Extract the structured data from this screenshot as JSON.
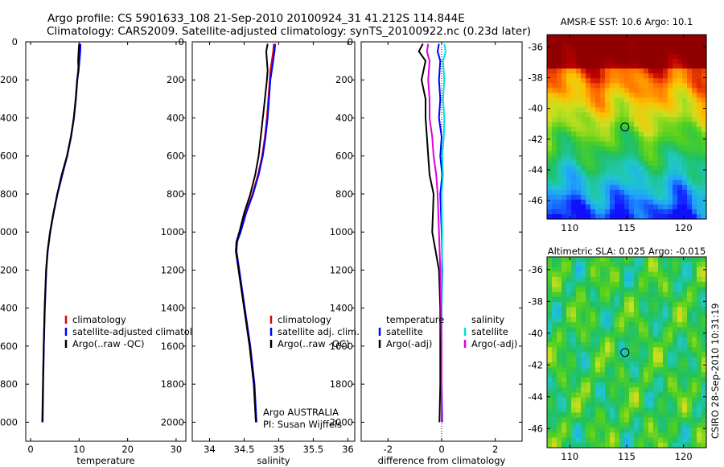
{
  "header": {
    "line1": "Argo profile: CS 5901633_108 21-Sep-2010 20100924_31 41.212S 114.844E",
    "line2": "Climatology: CARS2009. Satellite-adjusted climatology: synTS_20100922.nc (0.23d later)"
  },
  "credits": {
    "argo": "Argo AUSTRALIA",
    "pi": "PI: Susan Wijffels",
    "csiro": "CSIRO 28-Sep-2010 10:31:19"
  },
  "colors": {
    "climatology": "#e00000",
    "satellite": "#0000ff",
    "argo": "#000000",
    "satellite_salinity": "#00e0e0",
    "argo_salinity": "#e000e0"
  },
  "chart_data": [
    {
      "type": "line",
      "id": "temperature",
      "title": "",
      "xlabel": "temperature",
      "ylabel": "",
      "xlim": [
        -1,
        32
      ],
      "ylim": [
        2100,
        0
      ],
      "xticks": [
        0,
        10,
        20,
        30
      ],
      "yticks": [
        0,
        200,
        400,
        600,
        800,
        1000,
        1200,
        1400,
        1600,
        1800,
        2000
      ],
      "legend": {
        "placement": "lower-right",
        "entries": [
          "climatology",
          "satellite-adjusted climatology",
          "Argo(..raw -QC)"
        ]
      },
      "series": [
        {
          "name": "climatology",
          "color": "#e00000",
          "x": [
            10.1,
            10.05,
            9.95,
            9.8,
            9.6,
            9.3,
            8.9,
            8.3,
            7.5,
            6.5,
            5.5,
            4.7,
            4.0,
            3.5,
            3.2,
            2.9,
            2.7,
            2.55,
            2.45
          ],
          "y": [
            10,
            50,
            100,
            150,
            200,
            300,
            400,
            500,
            600,
            700,
            800,
            900,
            1000,
            1100,
            1200,
            1400,
            1600,
            1800,
            2000
          ]
        },
        {
          "name": "satellite-adjusted climatology",
          "color": "#0000ff",
          "x": [
            10.3,
            10.25,
            10.1,
            9.9,
            9.65,
            9.35,
            8.95,
            8.35,
            7.55,
            6.55,
            5.55,
            4.75,
            4.05,
            3.55,
            3.25,
            2.95,
            2.75,
            2.6,
            2.5
          ],
          "y": [
            10,
            50,
            100,
            150,
            200,
            300,
            400,
            500,
            600,
            700,
            800,
            900,
            1000,
            1100,
            1200,
            1400,
            1600,
            1800,
            2000
          ]
        },
        {
          "name": "Argo(..raw -QC)",
          "color": "#000000",
          "x": [
            10.0,
            9.9,
            9.8,
            9.9,
            9.6,
            9.3,
            8.9,
            8.3,
            7.5,
            6.4,
            5.5,
            4.7,
            4.0,
            3.5,
            3.2,
            2.9,
            2.7,
            2.55,
            2.4
          ],
          "y": [
            10,
            50,
            100,
            150,
            200,
            300,
            400,
            500,
            600,
            700,
            800,
            900,
            1000,
            1100,
            1200,
            1400,
            1600,
            1800,
            2000
          ]
        }
      ]
    },
    {
      "type": "line",
      "id": "salinity",
      "title": "",
      "xlabel": "salinity",
      "ylabel": "",
      "xlim": [
        33.75,
        36.1
      ],
      "ylim": [
        2100,
        0
      ],
      "xticks": [
        34,
        34.5,
        35,
        35.5,
        36
      ],
      "yticks": [
        0,
        200,
        400,
        600,
        800,
        1000,
        1200,
        1400,
        1600,
        1800,
        2000
      ],
      "legend": {
        "placement": "lower-right",
        "entries": [
          "climatology",
          "satellite adj. clim.",
          "Argo(..raw -QC)"
        ]
      },
      "series": [
        {
          "name": "climatology",
          "color": "#e00000",
          "x": [
            34.93,
            34.92,
            34.9,
            34.88,
            34.87,
            34.85,
            34.83,
            34.8,
            34.76,
            34.7,
            34.62,
            34.52,
            34.44,
            34.39,
            34.38,
            34.42,
            34.5,
            34.58,
            34.64,
            34.67
          ],
          "y": [
            10,
            50,
            100,
            150,
            200,
            300,
            400,
            500,
            600,
            700,
            800,
            900,
            1000,
            1050,
            1100,
            1200,
            1400,
            1600,
            1800,
            2000
          ]
        },
        {
          "name": "satellite adj. clim.",
          "color": "#0000ff",
          "x": [
            34.95,
            34.94,
            34.92,
            34.9,
            34.88,
            34.86,
            34.84,
            34.81,
            34.77,
            34.71,
            34.63,
            34.53,
            34.45,
            34.4,
            34.39,
            34.43,
            34.51,
            34.59,
            34.65,
            34.68
          ],
          "y": [
            10,
            50,
            100,
            150,
            200,
            300,
            400,
            500,
            600,
            700,
            800,
            900,
            1000,
            1050,
            1100,
            1200,
            1400,
            1600,
            1800,
            2000
          ]
        },
        {
          "name": "Argo(..raw -QC)",
          "color": "#000000",
          "x": [
            34.84,
            34.82,
            34.83,
            34.84,
            34.83,
            34.8,
            34.77,
            34.74,
            34.71,
            34.66,
            34.59,
            34.5,
            34.43,
            34.39,
            34.38,
            34.42,
            34.5,
            34.58,
            34.64,
            34.67
          ],
          "y": [
            10,
            50,
            100,
            150,
            200,
            300,
            400,
            500,
            600,
            700,
            800,
            900,
            1000,
            1050,
            1100,
            1200,
            1400,
            1600,
            1800,
            2000
          ]
        }
      ]
    },
    {
      "type": "line",
      "id": "difference",
      "title": "",
      "xlabel": "difference from climatology",
      "ylabel": "",
      "xlim": [
        -3,
        3
      ],
      "ylim": [
        2100,
        0
      ],
      "xticks": [
        -2,
        0,
        2
      ],
      "yticks": [
        0,
        200,
        400,
        600,
        800,
        1000,
        1200,
        1400,
        1600,
        1800,
        2000
      ],
      "legend": {
        "placement": "lower-right",
        "groups": [
          {
            "heading": "temperature",
            "entries": [
              "satellite",
              "Argo(-adj)"
            ]
          },
          {
            "heading": "salinity",
            "entries": [
              "satellite",
              "Argo(-adj)"
            ]
          }
        ]
      },
      "series": [
        {
          "name": "satellite",
          "group": "temperature",
          "color": "#0000ff",
          "x": [
            -0.1,
            -0.15,
            -0.05,
            -0.1,
            -0.05,
            -0.1,
            0.0,
            -0.05,
            0.02,
            -0.05,
            0.0,
            0.02,
            0.0,
            0.0,
            0.0,
            0.02
          ],
          "y": [
            10,
            50,
            100,
            200,
            300,
            400,
            500,
            600,
            700,
            800,
            1000,
            1200,
            1400,
            1600,
            1800,
            2000
          ]
        },
        {
          "name": "Argo(-adj)",
          "group": "temperature",
          "color": "#000000",
          "x": [
            -0.7,
            -0.85,
            -0.6,
            -0.75,
            -0.6,
            -0.6,
            -0.55,
            -0.5,
            -0.45,
            -0.3,
            -0.35,
            -0.1,
            -0.05,
            -0.05,
            -0.05,
            -0.08
          ],
          "y": [
            10,
            50,
            100,
            200,
            300,
            400,
            500,
            600,
            700,
            800,
            1000,
            1200,
            1400,
            1600,
            1800,
            2000
          ]
        },
        {
          "name": "satellite",
          "group": "salinity",
          "color": "#00e0e0",
          "x": [
            0.1,
            0.15,
            0.05,
            0.1,
            0.05,
            0.1,
            0.08,
            0.02,
            0.05,
            0.0,
            0.02,
            0.0,
            0.0,
            0.0,
            0.0
          ],
          "y": [
            10,
            50,
            100,
            200,
            300,
            400,
            500,
            600,
            700,
            800,
            1000,
            1200,
            1400,
            1600,
            2000
          ]
        },
        {
          "name": "Argo(-adj)",
          "group": "salinity",
          "color": "#e000e0",
          "x": [
            -0.5,
            -0.55,
            -0.45,
            -0.5,
            -0.45,
            -0.45,
            -0.35,
            -0.3,
            -0.2,
            -0.15,
            -0.1,
            -0.05,
            -0.02,
            0.0,
            0.0
          ],
          "y": [
            10,
            50,
            100,
            200,
            300,
            400,
            500,
            600,
            700,
            800,
            1000,
            1200,
            1400,
            1600,
            2000
          ]
        }
      ]
    },
    {
      "type": "heatmap",
      "id": "sst_map",
      "title": "AMSR-E SST: 10.6  Argo: 10.1",
      "xlabel": "",
      "ylabel": "",
      "xlim": [
        108,
        122
      ],
      "ylim": [
        -47.2,
        -35.2
      ],
      "xticks": [
        110,
        115,
        120
      ],
      "yticks": [
        -36,
        -38,
        -40,
        -42,
        -44,
        -46
      ],
      "marker": {
        "lon": 114.844,
        "lat": -41.212
      },
      "colorscale": [
        "#1010ff",
        "#20a0ff",
        "#20c8c8",
        "#20c060",
        "#50d020",
        "#c8e020",
        "#ffc000",
        "#ff6000",
        "#c00000",
        "#900000"
      ]
    },
    {
      "type": "heatmap",
      "id": "sla_map",
      "title": "Altimetric SLA: 0.025  Argo: -0.015",
      "xlabel": "",
      "ylabel": "",
      "xlim": [
        108,
        122
      ],
      "ylim": [
        -47.2,
        -35.2
      ],
      "xticks": [
        110,
        115,
        120
      ],
      "yticks": [
        -36,
        -38,
        -40,
        -42,
        -44,
        -46
      ],
      "marker": {
        "lon": 114.844,
        "lat": -41.212
      },
      "colorscale": [
        "#1010ff",
        "#20a0ff",
        "#20c8c8",
        "#20c060",
        "#50d020",
        "#c8e020",
        "#ffc000",
        "#ff6000"
      ]
    }
  ]
}
